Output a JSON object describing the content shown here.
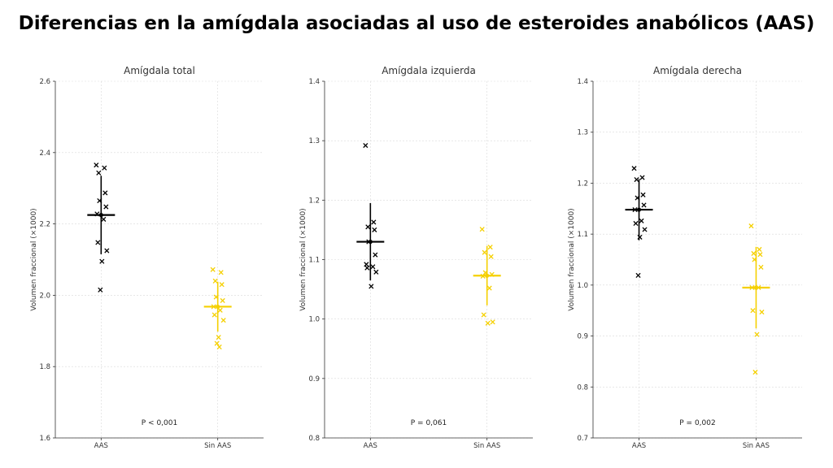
{
  "title": "Diferencias en la amígdala asociadas al uso de esteroides anabólicos (AAS)",
  "colors": {
    "aas": "#000000",
    "sin_aas": "#f5d000"
  },
  "chart_data": [
    {
      "type": "scatter",
      "title": "Amígdala total",
      "ylabel": "Volumen fraccional (×1000)",
      "categories": [
        "AAS",
        "Sin AAS"
      ],
      "ylim": [
        1.6,
        2.6
      ],
      "yticks": [
        "1.6",
        "1.8",
        "2.0",
        "2.2",
        "2.4",
        "2.6"
      ],
      "grid": true,
      "annotation": "P < 0,001",
      "series": [
        {
          "category": "AAS",
          "color": "#000000",
          "mean": 2.225,
          "sd": 0.11,
          "points": [
            2.365,
            2.357,
            2.343,
            2.287,
            2.265,
            2.248,
            2.228,
            2.213,
            2.148,
            2.125,
            2.095,
            2.015
          ]
        },
        {
          "category": "Sin AAS",
          "color": "#f5d000",
          "mean": 1.968,
          "sd": 0.07,
          "points": [
            2.072,
            2.064,
            2.04,
            2.03,
            1.995,
            1.985,
            1.968,
            1.958,
            1.945,
            1.93,
            1.882,
            1.865,
            1.855
          ]
        }
      ]
    },
    {
      "type": "scatter",
      "title": "Amígdala izquierda",
      "ylabel": "Volumen fraccional (×1000)",
      "categories": [
        "AAS",
        "Sin AAS"
      ],
      "ylim": [
        0.8,
        1.4
      ],
      "yticks": [
        "0.8",
        "0.9",
        "1.0",
        "1.1",
        "1.2",
        "1.3",
        "1.4"
      ],
      "grid": true,
      "annotation": "P = 0,061",
      "series": [
        {
          "category": "AAS",
          "color": "#000000",
          "mean": 1.13,
          "sd": 0.065,
          "points": [
            1.292,
            1.163,
            1.155,
            1.15,
            1.13,
            1.108,
            1.092,
            1.088,
            1.086,
            1.079,
            1.055
          ]
        },
        {
          "category": "Sin AAS",
          "color": "#f5d000",
          "mean": 1.073,
          "sd": 0.05,
          "points": [
            1.151,
            1.121,
            1.112,
            1.105,
            1.078,
            1.075,
            1.072,
            1.052,
            1.007,
            0.995,
            0.993
          ]
        }
      ]
    },
    {
      "type": "scatter",
      "title": "Amígdala derecha",
      "ylabel": "Volumen fraccional (×1000)",
      "categories": [
        "AAS",
        "Sin AAS"
      ],
      "ylim": [
        0.7,
        1.4
      ],
      "yticks": [
        "0.7",
        "0.8",
        "0.9",
        "1.0",
        "1.1",
        "1.2",
        "1.3",
        "1.4"
      ],
      "grid": true,
      "annotation": "P = 0,002",
      "series": [
        {
          "category": "AAS",
          "color": "#000000",
          "mean": 1.148,
          "sd": 0.06,
          "points": [
            1.229,
            1.211,
            1.207,
            1.177,
            1.171,
            1.157,
            1.148,
            1.126,
            1.121,
            1.109,
            1.094,
            1.019
          ]
        },
        {
          "category": "Sin AAS",
          "color": "#f5d000",
          "mean": 0.995,
          "sd": 0.08,
          "points": [
            1.116,
            1.07,
            1.062,
            1.06,
            1.05,
            1.035,
            0.995,
            0.995,
            0.95,
            0.947,
            0.903,
            0.829
          ]
        }
      ]
    }
  ]
}
